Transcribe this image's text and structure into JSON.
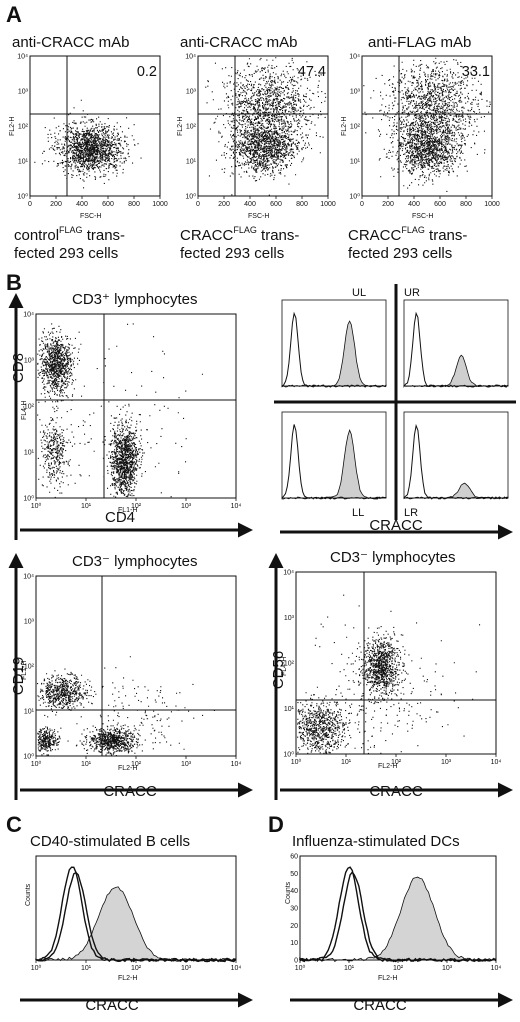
{
  "panels": {
    "A": "A",
    "B": "B",
    "C": "C",
    "D": "D"
  },
  "panelA": {
    "plots": [
      {
        "title": "anti-CRACC mAb",
        "value": "0.2",
        "ylabel": "FL2-H",
        "xlabel": "FSC-H",
        "caption1_main": "control",
        "caption1_sup": "FLAG",
        "caption1_rest": " trans-",
        "caption2": "fected 293 cells",
        "cloud": "low"
      },
      {
        "title": "anti-CRACC mAb",
        "value": "47.4",
        "ylabel": "FL2-H",
        "xlabel": "FSC-H",
        "caption1_main": "CRACC",
        "caption1_sup": "FLAG",
        "caption1_rest": " trans-",
        "caption2": "fected 293 cells",
        "cloud": "high"
      },
      {
        "title": "anti-FLAG mAb",
        "value": "33.1",
        "ylabel": "FL2-H",
        "xlabel": "FSC-H",
        "caption1_main": "CRACC",
        "caption1_sup": "FLAG",
        "caption1_rest": " trans-",
        "caption2": "fected 293 cells",
        "cloud": "high"
      }
    ],
    "xticks": [
      "0",
      "200",
      "400",
      "600",
      "800",
      "1000"
    ],
    "yticks": [
      "10⁰",
      "10¹",
      "10²",
      "10³",
      "10⁴"
    ]
  },
  "panelB": {
    "cd4cd8": {
      "title": "CD3⁺ lymphocytes",
      "y_axis": "CD8",
      "x_axis": "CD4",
      "ylabel": "FL4-H",
      "xlabel": "FL1-H"
    },
    "quadrants": {
      "labels": [
        "UL",
        "UR",
        "LL",
        "LR"
      ],
      "x_axis": "CRACC"
    },
    "cd19": {
      "title": "CD3⁻ lymphocytes",
      "y_axis": "CD19",
      "x_axis": "CRACC",
      "ylabel": "FL1-H",
      "xlabel": "FL2-H"
    },
    "cd56": {
      "title": "CD3⁻ lymphocytes",
      "y_axis": "CD56",
      "x_axis": "CRACC",
      "ylabel": "FL4-H",
      "xlabel": "FL2-H"
    }
  },
  "panelC": {
    "title": "CD40-stimulated B cells",
    "x_axis": "CRACC",
    "ylabel": "Counts",
    "xlabel": "FL2-H"
  },
  "panelD": {
    "title": "Influenza-stimulated DCs",
    "x_axis": "CRACC",
    "ylabel": "Counts",
    "xlabel": "FL2-H",
    "yticks": [
      "0",
      "10",
      "20",
      "30",
      "40",
      "50",
      "60"
    ]
  },
  "log_ticks": [
    "10⁰",
    "10¹",
    "10²",
    "10³",
    "10⁴"
  ]
}
